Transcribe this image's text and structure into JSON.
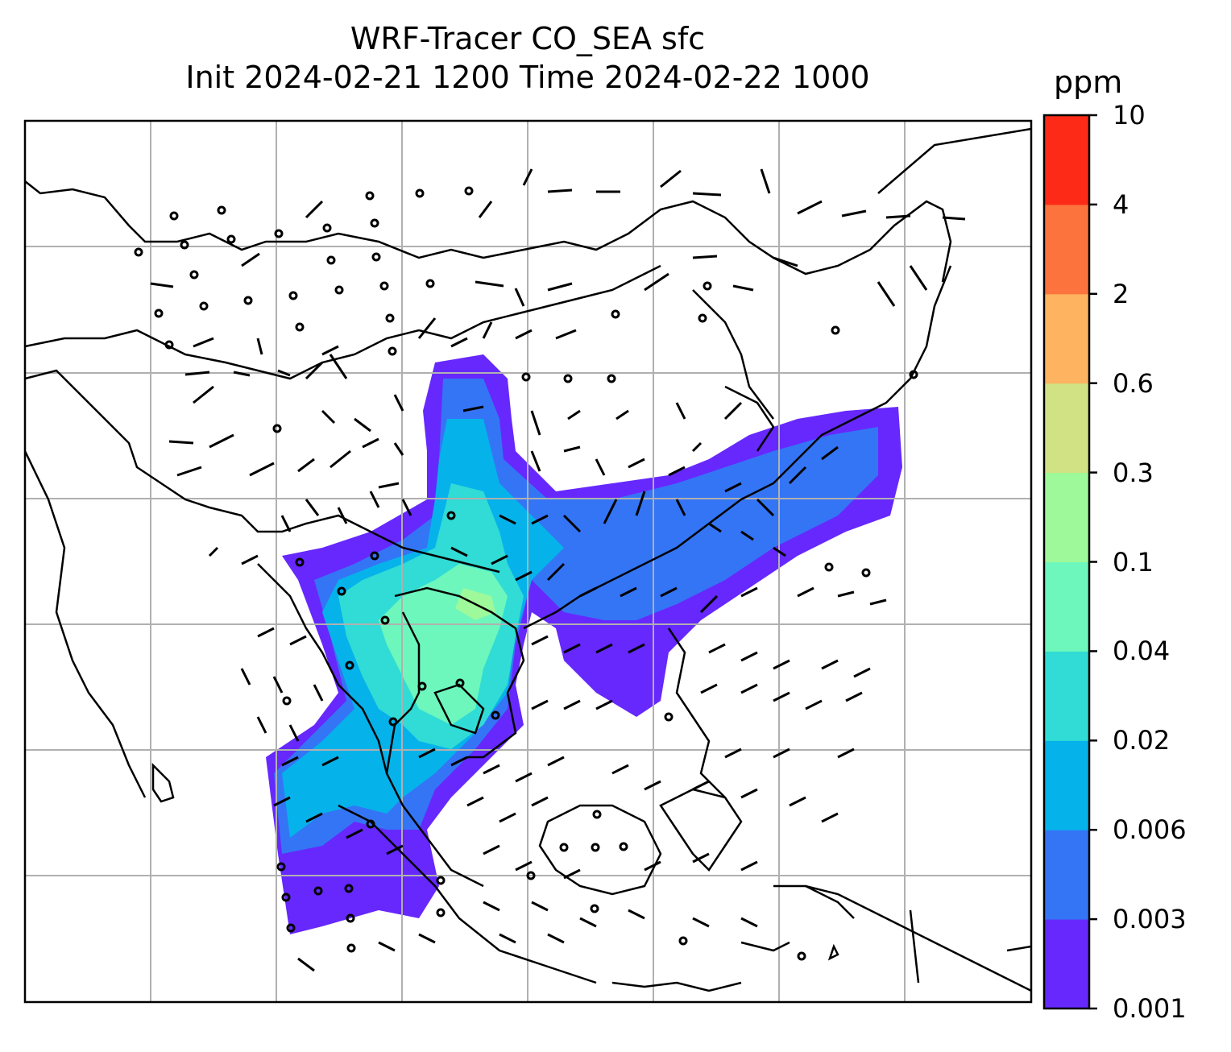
{
  "title": {
    "line1": "WRF-Tracer CO_SEA sfc",
    "line2": "Init 2024-02-21 1200 Time 2024-02-22 1000"
  },
  "colorbar": {
    "unit": "ppm",
    "levels": [
      "0.001",
      "0.003",
      "0.006",
      "0.02",
      "0.04",
      "0.1",
      "0.3",
      "0.6",
      "2",
      "4",
      "10"
    ],
    "colors": [
      "#6628fd",
      "#3475f6",
      "#06b2ea",
      "#30dcd5",
      "#6df7bc",
      "#9ef99a",
      "#d0e283",
      "#fdb360",
      "#fd733e",
      "#fc2a16"
    ]
  },
  "map": {
    "gridlines": true,
    "wind_barbs": true,
    "coastlines": true
  }
}
